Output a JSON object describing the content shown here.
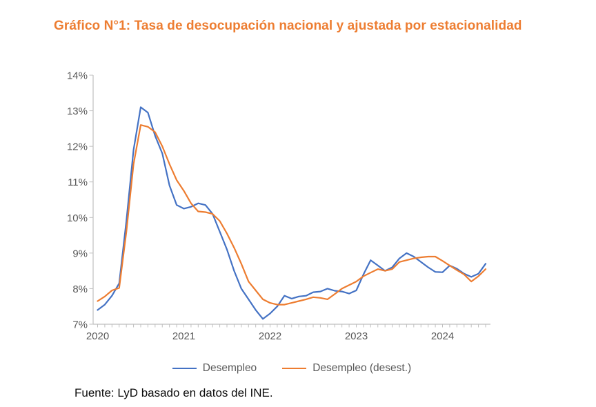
{
  "title": "Gráfico N°1: Tasa de desocupación nacional y ajustada por estacionalidad",
  "source": "Fuente: LyD basado en datos del INE.",
  "colors": {
    "title": "#ED7D31",
    "axis_line": "#BFBFBF",
    "tick_label": "#595959",
    "legend_text": "#595959",
    "source_text": "#0b0b0b"
  },
  "chart_data": {
    "type": "line",
    "title": "Tasa de desocupación nacional y ajustada por estacionalidad",
    "xlabel": "",
    "ylabel": "",
    "x_unit": "monthly moving quarters",
    "x_start": "2020-01",
    "x_end": "2024-07",
    "n_points": 55,
    "ylim": [
      7,
      14
    ],
    "y_tick_labels": [
      "7%",
      "8%",
      "9%",
      "10%",
      "11%",
      "12%",
      "13%",
      "14%"
    ],
    "x_tick_labels": [
      "2020",
      "2021",
      "2022",
      "2023",
      "2024"
    ],
    "x_tick_month_index": [
      0,
      12,
      24,
      36,
      48
    ],
    "grid": false,
    "legend_position": "bottom",
    "series": [
      {
        "name": "Desempleo",
        "color": "#4472C4",
        "values": [
          7.4,
          7.55,
          7.8,
          8.15,
          9.9,
          11.9,
          13.1,
          12.95,
          12.3,
          11.8,
          10.9,
          10.35,
          10.25,
          10.3,
          10.4,
          10.35,
          10.1,
          9.6,
          9.1,
          8.5,
          8.0,
          7.7,
          7.4,
          7.15,
          7.3,
          7.5,
          7.8,
          7.72,
          7.78,
          7.8,
          7.9,
          7.92,
          8.0,
          7.94,
          7.92,
          7.86,
          7.95,
          8.4,
          8.8,
          8.65,
          8.5,
          8.6,
          8.85,
          9.0,
          8.9,
          8.75,
          8.6,
          8.47,
          8.46,
          8.65,
          8.56,
          8.42,
          8.33,
          8.42,
          8.7
        ]
      },
      {
        "name": "Desempleo (desest.)",
        "color": "#ED7D31",
        "values": [
          7.65,
          7.78,
          7.95,
          8.02,
          9.6,
          11.5,
          12.6,
          12.55,
          12.4,
          12.0,
          11.5,
          11.05,
          10.75,
          10.4,
          10.17,
          10.15,
          10.1,
          9.9,
          9.55,
          9.15,
          8.7,
          8.2,
          7.95,
          7.7,
          7.6,
          7.55,
          7.55,
          7.6,
          7.65,
          7.7,
          7.76,
          7.74,
          7.7,
          7.85,
          8.0,
          8.1,
          8.2,
          8.35,
          8.45,
          8.55,
          8.5,
          8.55,
          8.75,
          8.8,
          8.85,
          8.88,
          8.9,
          8.9,
          8.78,
          8.65,
          8.52,
          8.4,
          8.2,
          8.35,
          8.55
        ]
      }
    ]
  }
}
